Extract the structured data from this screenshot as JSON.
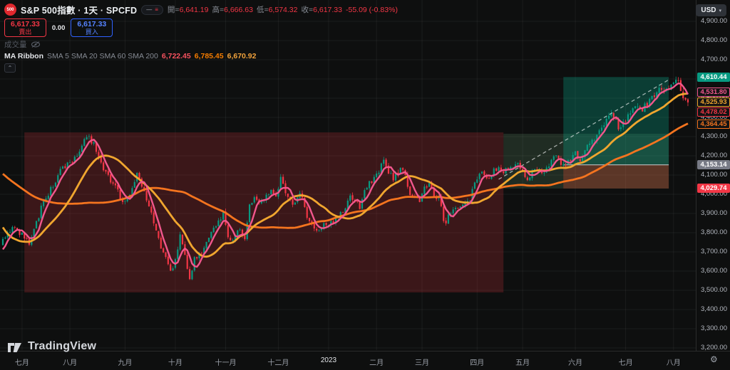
{
  "window": {
    "currency": "USD",
    "currency_chevron": "▾",
    "watermark": "TradingView",
    "gear": "⚙",
    "collapse_chevron": "⌃"
  },
  "header": {
    "badge": "500",
    "title": "S&P 500指數 · 1天 · SPCFD",
    "toolbar": {
      "minimize_glyph": "—",
      "list_glyph": "≡"
    },
    "ohlc": {
      "o_label": "開",
      "o": "6,641.19",
      "h_label": "高",
      "h": "6,666.63",
      "l_label": "低",
      "l": "6,574.32",
      "c_label": "收",
      "c": "6,617.33",
      "change": "-55.09 (-0.83%)"
    },
    "sell": {
      "price": "6,617.33",
      "label": "賣出"
    },
    "spread": "0.00",
    "buy": {
      "price": "6,617.33",
      "label": "買入"
    },
    "volume": {
      "label": "成交量"
    },
    "ma_ribbon": {
      "name": "MA Ribbon",
      "params": "SMA 5 SMA 20 SMA 60 SMA 200",
      "values": [
        "6,722.45",
        "6,785.45",
        "6,670.92"
      ],
      "value_colors": [
        "#f7525f",
        "#f57c00",
        "#f2a33c"
      ]
    }
  },
  "chart_data": {
    "type": "candlestick",
    "title": "S&P 500指數 1天 SPCFD",
    "y_axis": {
      "min": 3200,
      "max": 4900,
      "step": 100,
      "grid": true
    },
    "x_axis_months": [
      {
        "label": "七月",
        "day": 8
      },
      {
        "label": "八月",
        "day": 28
      },
      {
        "label": "九月",
        "day": 51
      },
      {
        "label": "十月",
        "day": 72
      },
      {
        "label": "十一月",
        "day": 93
      },
      {
        "label": "十二月",
        "day": 115
      },
      {
        "label": "2023",
        "day": 136,
        "year": true
      },
      {
        "label": "二月",
        "day": 156
      },
      {
        "label": "三月",
        "day": 175
      },
      {
        "label": "四月",
        "day": 198
      },
      {
        "label": "五月",
        "day": 217
      },
      {
        "label": "六月",
        "day": 239
      },
      {
        "label": "七月",
        "day": 260
      },
      {
        "label": "八月",
        "day": 280
      }
    ],
    "candle_colors": {
      "up": "#089981",
      "down": "#f23645"
    },
    "warmup_anchors": [
      [
        -80,
        4620
      ],
      [
        -62,
        4480
      ],
      [
        -45,
        4210
      ],
      [
        -30,
        4160
      ],
      [
        -22,
        4280
      ],
      [
        -14,
        3920
      ],
      [
        -8,
        3700
      ],
      [
        -3,
        3680
      ]
    ],
    "price_anchors": [
      [
        0,
        3764
      ],
      [
        4,
        3830
      ],
      [
        8,
        3790
      ],
      [
        11,
        3750
      ],
      [
        17,
        3960
      ],
      [
        22,
        4070
      ],
      [
        24,
        4118
      ],
      [
        28,
        4165
      ],
      [
        31,
        4210
      ],
      [
        35,
        4297
      ],
      [
        38,
        4270
      ],
      [
        42,
        4140
      ],
      [
        47,
        4035
      ],
      [
        50,
        3960
      ],
      [
        53,
        3990
      ],
      [
        56,
        4105
      ],
      [
        59,
        4000
      ],
      [
        62,
        3890
      ],
      [
        65,
        3760
      ],
      [
        67,
        3700
      ],
      [
        70,
        3600
      ],
      [
        72,
        3650
      ],
      [
        74,
        3785
      ],
      [
        76,
        3670
      ],
      [
        78,
        3545
      ],
      [
        80,
        3660
      ],
      [
        83,
        3690
      ],
      [
        85,
        3755
      ],
      [
        87,
        3800
      ],
      [
        90,
        3860
      ],
      [
        92,
        3895
      ],
      [
        94,
        3780
      ],
      [
        96,
        3760
      ],
      [
        99,
        3820
      ],
      [
        101,
        3755
      ],
      [
        103,
        3950
      ],
      [
        105,
        3990
      ],
      [
        107,
        3960
      ],
      [
        110,
        3995
      ],
      [
        112,
        4025
      ],
      [
        114,
        4005
      ],
      [
        116,
        4075
      ],
      [
        119,
        3995
      ],
      [
        121,
        3940
      ],
      [
        124,
        4015
      ],
      [
        126,
        3925
      ],
      [
        128,
        3855
      ],
      [
        130,
        3830
      ],
      [
        132,
        3810
      ],
      [
        134,
        3845
      ],
      [
        136,
        3835
      ],
      [
        138,
        3860
      ],
      [
        140,
        3890
      ],
      [
        143,
        3920
      ],
      [
        145,
        3995
      ],
      [
        147,
        3960
      ],
      [
        149,
        3930
      ],
      [
        151,
        4010
      ],
      [
        153,
        4065
      ],
      [
        155,
        4075
      ],
      [
        157,
        4120
      ],
      [
        159,
        4175
      ],
      [
        161,
        4110
      ],
      [
        163,
        4085
      ],
      [
        166,
        4135
      ],
      [
        168,
        4095
      ],
      [
        170,
        4000
      ],
      [
        172,
        3985
      ],
      [
        174,
        3965
      ],
      [
        176,
        4040
      ],
      [
        178,
        4048
      ],
      [
        180,
        3995
      ],
      [
        182,
        3980
      ],
      [
        184,
        3870
      ],
      [
        185,
        3855
      ],
      [
        187,
        3905
      ],
      [
        189,
        3920
      ],
      [
        191,
        3945
      ],
      [
        193,
        3965
      ],
      [
        195,
        3975
      ],
      [
        197,
        4055
      ],
      [
        199,
        4105
      ],
      [
        201,
        4100
      ],
      [
        203,
        4095
      ],
      [
        205,
        4120
      ],
      [
        207,
        4135
      ],
      [
        209,
        4105
      ],
      [
        211,
        4135
      ],
      [
        213,
        4150
      ],
      [
        215,
        4165
      ],
      [
        217,
        4120
      ],
      [
        219,
        4075
      ],
      [
        221,
        4115
      ],
      [
        223,
        4135
      ],
      [
        225,
        4110
      ],
      [
        227,
        4130
      ],
      [
        229,
        4180
      ],
      [
        231,
        4190
      ],
      [
        233,
        4155
      ],
      [
        235,
        4150
      ],
      [
        237,
        4190
      ],
      [
        239,
        4215
      ],
      [
        241,
        4185
      ],
      [
        243,
        4230
      ],
      [
        245,
        4280
      ],
      [
        247,
        4295
      ],
      [
        249,
        4330
      ],
      [
        251,
        4370
      ],
      [
        253,
        4420
      ],
      [
        255,
        4395
      ],
      [
        257,
        4350
      ],
      [
        259,
        4380
      ],
      [
        261,
        4400
      ],
      [
        263,
        4445
      ],
      [
        265,
        4455
      ],
      [
        267,
        4440
      ],
      [
        269,
        4470
      ],
      [
        271,
        4510
      ],
      [
        273,
        4530
      ],
      [
        275,
        4560
      ],
      [
        277,
        4540
      ],
      [
        279,
        4575
      ],
      [
        280,
        4590
      ],
      [
        282,
        4585
      ],
      [
        284,
        4515
      ],
      [
        286,
        4478
      ]
    ],
    "ma_lines": [
      {
        "name": "SMA 5",
        "window": 5,
        "color": "#f2578d",
        "width": 2.4,
        "last_label": "4,531.80"
      },
      {
        "name": "SMA 20",
        "window": 20,
        "color": "#f0a62f",
        "width": 2.8,
        "last_label": "4,525.93"
      },
      {
        "name": "SMA 60",
        "window": 60,
        "color": "#f4741f",
        "width": 2.8,
        "last_label": "4,364.45"
      }
    ],
    "zones": [
      {
        "name": "bear-zone",
        "d1": 9,
        "d2": 209,
        "p1": 4322,
        "p2": 3489,
        "fill": "rgba(190,45,55,0.26)"
      },
      {
        "name": "bull-zone-outer",
        "d1": 209,
        "d2": 278,
        "p1": 4315,
        "p2": 4029.74,
        "fill": "rgba(130,200,140,0.16)"
      },
      {
        "name": "bull-zone-inner",
        "d1": 234,
        "d2": 278,
        "p1": 4610.44,
        "p2": 4153.14,
        "fill": "rgba(8,170,140,0.30)"
      },
      {
        "name": "stop-zone",
        "d1": 234,
        "d2": 278,
        "p1": 4153.14,
        "p2": 4029.74,
        "fill": "rgba(230,80,50,0.30)"
      }
    ],
    "hline": {
      "price": 4153.14,
      "d1": 234,
      "d2": 278,
      "color": "rgba(220,225,230,0.7)"
    },
    "trendline": {
      "d1": 207,
      "p1": 4078,
      "d2": 278,
      "p2": 4596,
      "color": "rgba(255,255,255,0.6)",
      "dash": true
    },
    "price_labels": [
      {
        "text": "4,610.44",
        "price": 4610.44,
        "style": "filled",
        "color": "#089981"
      },
      {
        "text": "4,531.80",
        "price": 4531.8,
        "style": "outline",
        "color": "#f2578d"
      },
      {
        "text": "4,525.93",
        "price": 4525.93,
        "style": "outline",
        "color": "#f0a62f"
      },
      {
        "text": "4,478.02",
        "price": 4478.02,
        "style": "outline",
        "color": "#f23645"
      },
      {
        "text": "4,364.45",
        "price": 4364.45,
        "style": "outline",
        "color": "#f4741f"
      },
      {
        "text": "4,153.14",
        "price": 4153.14,
        "style": "filled",
        "color": "#787b86"
      },
      {
        "text": "4,029.74",
        "price": 4029.74,
        "style": "filled",
        "color": "#f23645"
      }
    ]
  }
}
